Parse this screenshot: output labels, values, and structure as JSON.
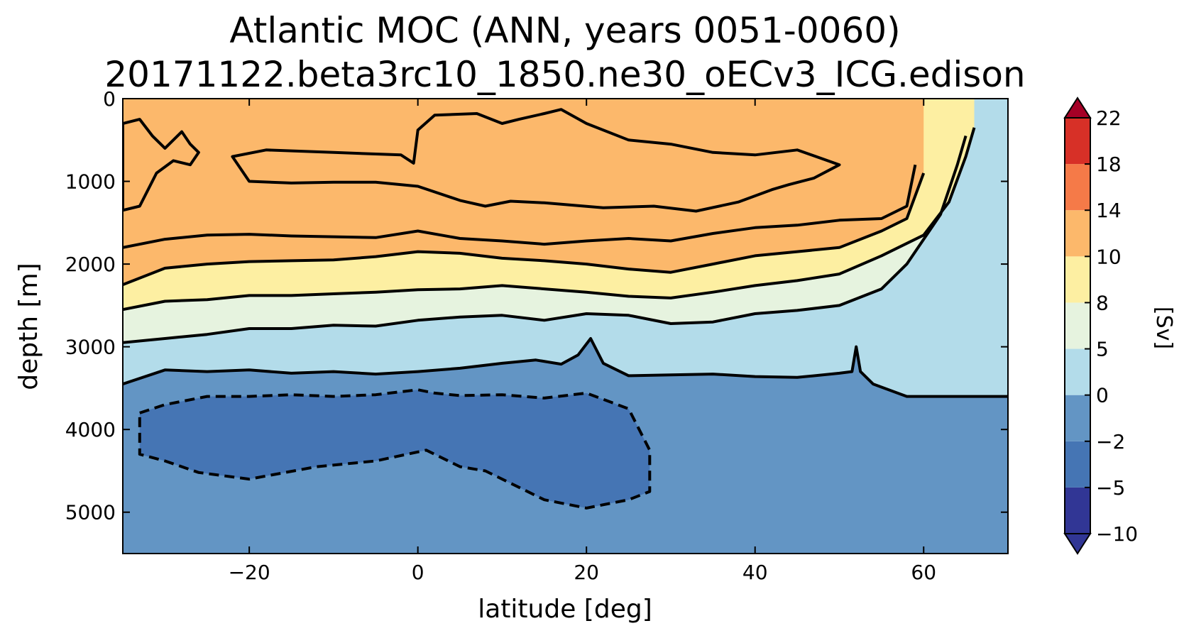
{
  "chart_data": {
    "type": "contour",
    "title_line1": "Atlantic MOC (ANN, years 0051-0060)",
    "title_line2": "20171122.beta3rc10_1850.ne30_oECv3_ICG.edison",
    "xlabel": "latitude [deg]",
    "ylabel": "depth [m]",
    "xlim": [
      -35,
      70
    ],
    "ylim": [
      5500,
      0
    ],
    "xticks": [
      -20,
      0,
      20,
      40,
      60
    ],
    "xtick_labels": [
      "−20",
      "0",
      "20",
      "40",
      "60"
    ],
    "yticks": [
      0,
      1000,
      2000,
      3000,
      4000,
      5000
    ],
    "ytick_labels": [
      "0",
      "1000",
      "2000",
      "3000",
      "4000",
      "5000"
    ],
    "colorbar": {
      "label": "[Sv]",
      "levels": [
        -10,
        -5,
        -2,
        0,
        5,
        8,
        10,
        14,
        18,
        22
      ],
      "level_labels": [
        "−10",
        "−5",
        "−2",
        "0",
        "5",
        "8",
        "10",
        "14",
        "18",
        "22"
      ],
      "colors": [
        "#313695",
        "#4575b4",
        "#6395c4",
        "#b3dcea",
        "#e6f3df",
        "#fdefa2",
        "#fcb86b",
        "#f57a48",
        "#d73027",
        "#a50026"
      ],
      "under_color": "#313695",
      "over_color": "#a50026"
    },
    "contour_lines": [
      {
        "level": -2,
        "style": "dashed",
        "lat": [
          -33,
          -30,
          -25,
          -20,
          -15,
          -10,
          -5,
          0,
          2,
          5,
          10,
          15,
          20,
          25,
          27.5,
          27.5,
          25,
          20,
          15,
          11,
          8,
          5,
          1,
          -5,
          -12,
          -20,
          -26,
          -30,
          -33
        ],
        "depth": [
          3800,
          3700,
          3600,
          3600,
          3580,
          3600,
          3580,
          3520,
          3560,
          3590,
          3580,
          3620,
          3560,
          3750,
          4250,
          4750,
          4850,
          4950,
          4850,
          4650,
          4500,
          4450,
          4250,
          4380,
          4450,
          4600,
          4520,
          4380,
          4300
        ]
      },
      {
        "level": 0,
        "style": "solid",
        "lat": [
          -35,
          -30,
          -25,
          -20,
          -15,
          -10,
          -5,
          0,
          5,
          10,
          14,
          17,
          19,
          20.5,
          22,
          25,
          30,
          35,
          40,
          45,
          50,
          51.5,
          52,
          52.5,
          54,
          58,
          62,
          66,
          70
        ],
        "depth": [
          3450,
          3280,
          3300,
          3280,
          3320,
          3300,
          3330,
          3300,
          3260,
          3200,
          3160,
          3210,
          3100,
          2900,
          3200,
          3350,
          3340,
          3330,
          3360,
          3370,
          3320,
          3300,
          3000,
          3300,
          3450,
          3600,
          3600,
          3600,
          3600
        ]
      },
      {
        "level": 5,
        "style": "solid",
        "lat": [
          -35,
          -30,
          -25,
          -20,
          -15,
          -10,
          -5,
          0,
          5,
          10,
          15,
          20,
          25,
          30,
          35,
          40,
          45,
          50,
          55,
          58,
          62,
          64,
          65
        ],
        "depth": [
          2950,
          2900,
          2850,
          2780,
          2780,
          2740,
          2750,
          2680,
          2640,
          2620,
          2680,
          2600,
          2620,
          2720,
          2700,
          2600,
          2560,
          2500,
          2300,
          2000,
          1400,
          800,
          450
        ]
      },
      {
        "level": 8,
        "style": "solid",
        "lat": [
          -35,
          -30,
          -25,
          -20,
          -15,
          -10,
          -5,
          0,
          5,
          10,
          15,
          20,
          25,
          30,
          35,
          40,
          45,
          50,
          55,
          60,
          63,
          65,
          66
        ],
        "depth": [
          2550,
          2450,
          2430,
          2380,
          2380,
          2360,
          2340,
          2310,
          2300,
          2260,
          2300,
          2340,
          2390,
          2410,
          2340,
          2260,
          2200,
          2120,
          1900,
          1650,
          1250,
          700,
          350
        ]
      },
      {
        "level": 10,
        "style": "solid",
        "lat": [
          -35,
          -30,
          -25,
          -20,
          -15,
          -10,
          -5,
          0,
          5,
          10,
          15,
          20,
          25,
          30,
          35,
          40,
          45,
          50,
          55,
          58,
          60
        ],
        "depth": [
          2250,
          2050,
          2000,
          1970,
          1960,
          1950,
          1910,
          1850,
          1870,
          1930,
          1960,
          2000,
          2060,
          2100,
          2000,
          1900,
          1850,
          1800,
          1600,
          1450,
          900
        ]
      },
      {
        "level": 14,
        "style": "solid",
        "lat": [
          -35,
          -30,
          -25,
          -20,
          -15,
          -10,
          -5,
          0,
          5,
          10,
          15,
          20,
          25,
          30,
          35,
          40,
          45,
          50,
          55,
          58,
          59
        ],
        "depth": [
          1800,
          1700,
          1650,
          1640,
          1660,
          1670,
          1680,
          1600,
          1690,
          1720,
          1760,
          1720,
          1690,
          1720,
          1630,
          1560,
          1530,
          1470,
          1450,
          1300,
          800
        ]
      }
    ],
    "regions": [
      {
        "level_min": 10,
        "level_max": 14,
        "name": "upper-cell-core-west",
        "lat": [
          -35,
          -33,
          -31.5,
          -30,
          -28,
          -27,
          -26,
          -27,
          -29,
          -31,
          -33,
          -35
        ],
        "depth": [
          300,
          250,
          450,
          600,
          400,
          550,
          650,
          800,
          750,
          900,
          1300,
          1350
        ]
      },
      {
        "level_min": 10,
        "level_max": 14,
        "name": "upper-cell-core-main",
        "lat": [
          -22,
          -18,
          -10,
          -2,
          -0.5,
          0,
          2,
          7,
          10,
          12,
          15,
          17,
          20,
          25,
          30,
          35,
          40,
          45,
          50,
          47,
          44,
          42,
          38,
          33,
          28,
          22,
          15,
          11,
          8,
          5,
          0,
          -5,
          -10,
          -15,
          -20
        ],
        "depth": [
          700,
          620,
          650,
          680,
          780,
          380,
          200,
          180,
          300,
          250,
          180,
          130,
          300,
          500,
          550,
          650,
          680,
          620,
          800,
          960,
          1040,
          1100,
          1250,
          1360,
          1300,
          1320,
          1260,
          1240,
          1300,
          1230,
          1060,
          1010,
          1010,
          1020,
          1000
        ]
      }
    ]
  }
}
